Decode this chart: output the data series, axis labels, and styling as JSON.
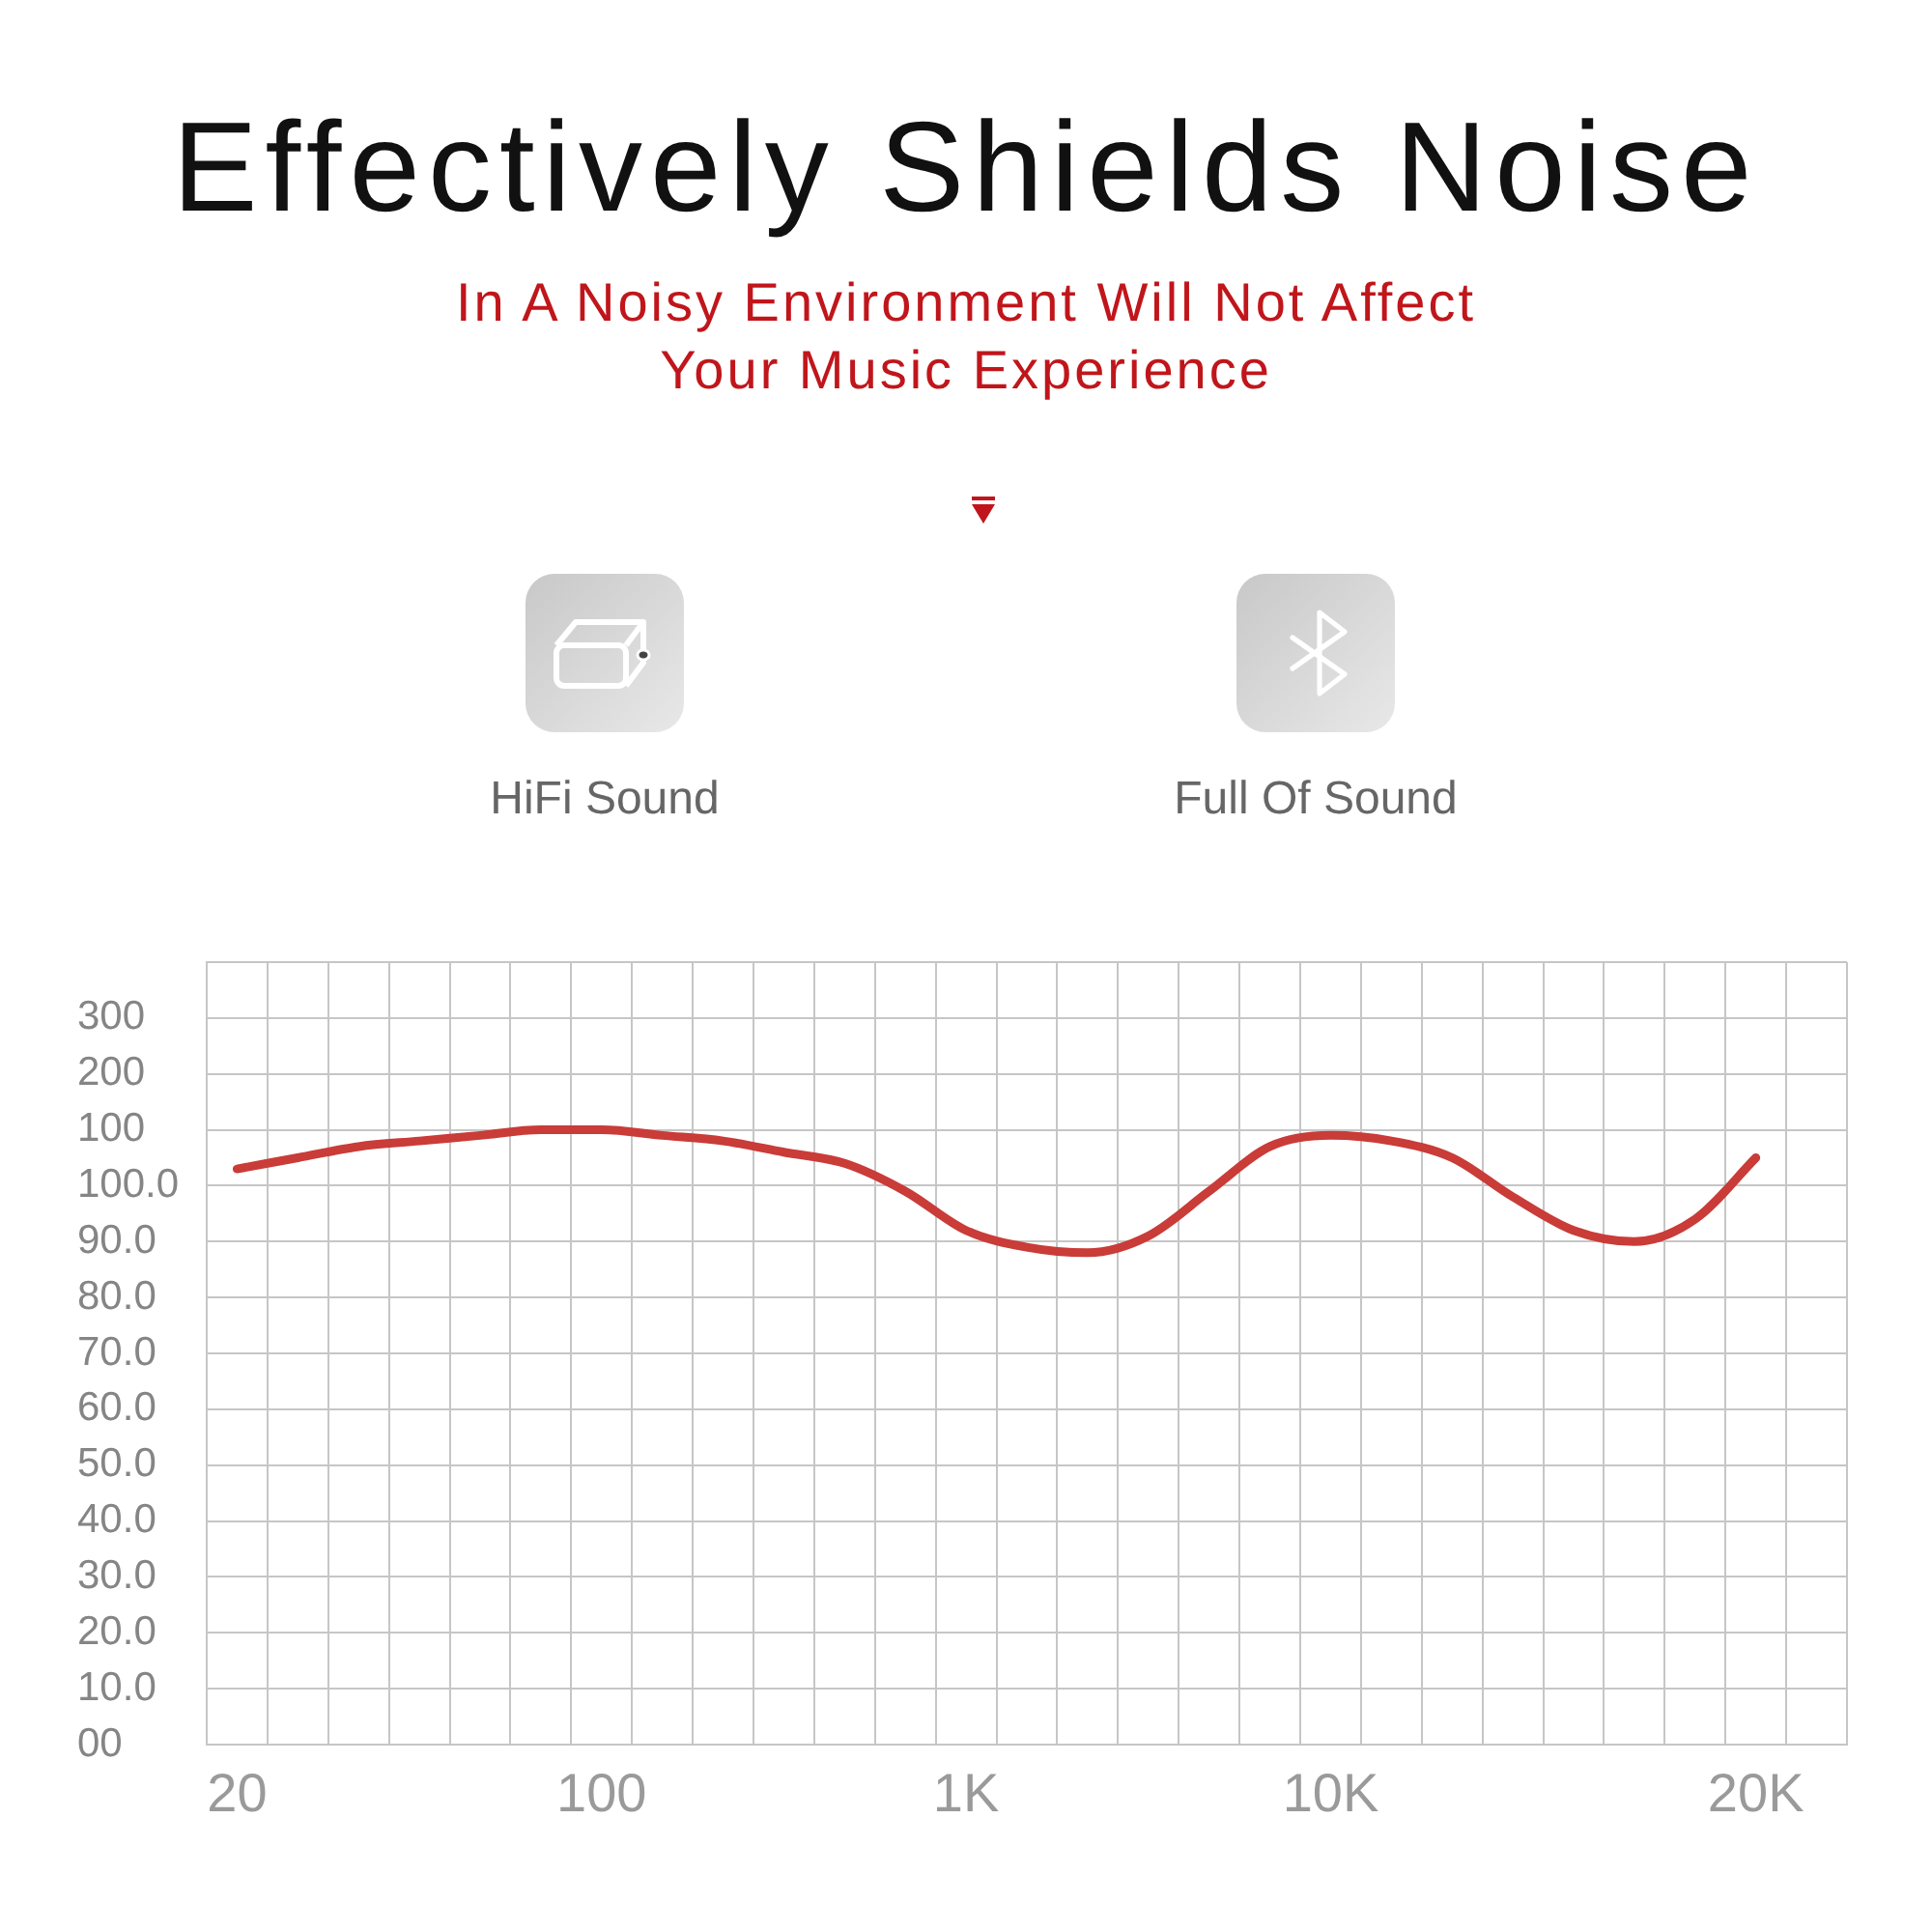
{
  "chart_data": {
    "type": "line",
    "title": "Effectively Shields Noise",
    "subtitle": "In A Noisy Environment Will Not Affect Your Music Experience",
    "annotations": [
      "HiFi Sound",
      "Full Of Sound"
    ],
    "categories": [
      "20",
      null,
      null,
      null,
      null,
      null,
      "100",
      null,
      null,
      null,
      null,
      null,
      "1K",
      null,
      null,
      null,
      null,
      null,
      "10K",
      null,
      null,
      null,
      null,
      null,
      null,
      "20K",
      null
    ],
    "values": [
      103,
      105,
      107,
      108,
      109,
      110,
      110,
      109,
      108,
      106,
      104,
      99,
      92,
      89,
      88,
      91,
      99,
      107,
      109,
      108,
      105,
      98,
      92,
      90,
      94,
      105,
      null
    ],
    "color": "#c93c38",
    "ylim": [
      0,
      140
    ],
    "yticks": [
      {
        "value": 0,
        "label": "00"
      },
      {
        "value": 10,
        "label": "10.0"
      },
      {
        "value": 20,
        "label": "20.0"
      },
      {
        "value": 30,
        "label": "30.0"
      },
      {
        "value": 40,
        "label": "40.0"
      },
      {
        "value": 50,
        "label": "50.0"
      },
      {
        "value": 60,
        "label": "60.0"
      },
      {
        "value": 70,
        "label": "70.0"
      },
      {
        "value": 80,
        "label": "80.0"
      },
      {
        "value": 90,
        "label": "90.0"
      },
      {
        "value": 100,
        "label": "100.0"
      },
      {
        "value": 140,
        "label": null
      }
    ],
    "y2lim": [
      -1000,
      400
    ],
    "y2ticks": [
      100,
      200,
      300
    ],
    "grid": true,
    "marker": "none",
    "line_style": "solid"
  }
}
